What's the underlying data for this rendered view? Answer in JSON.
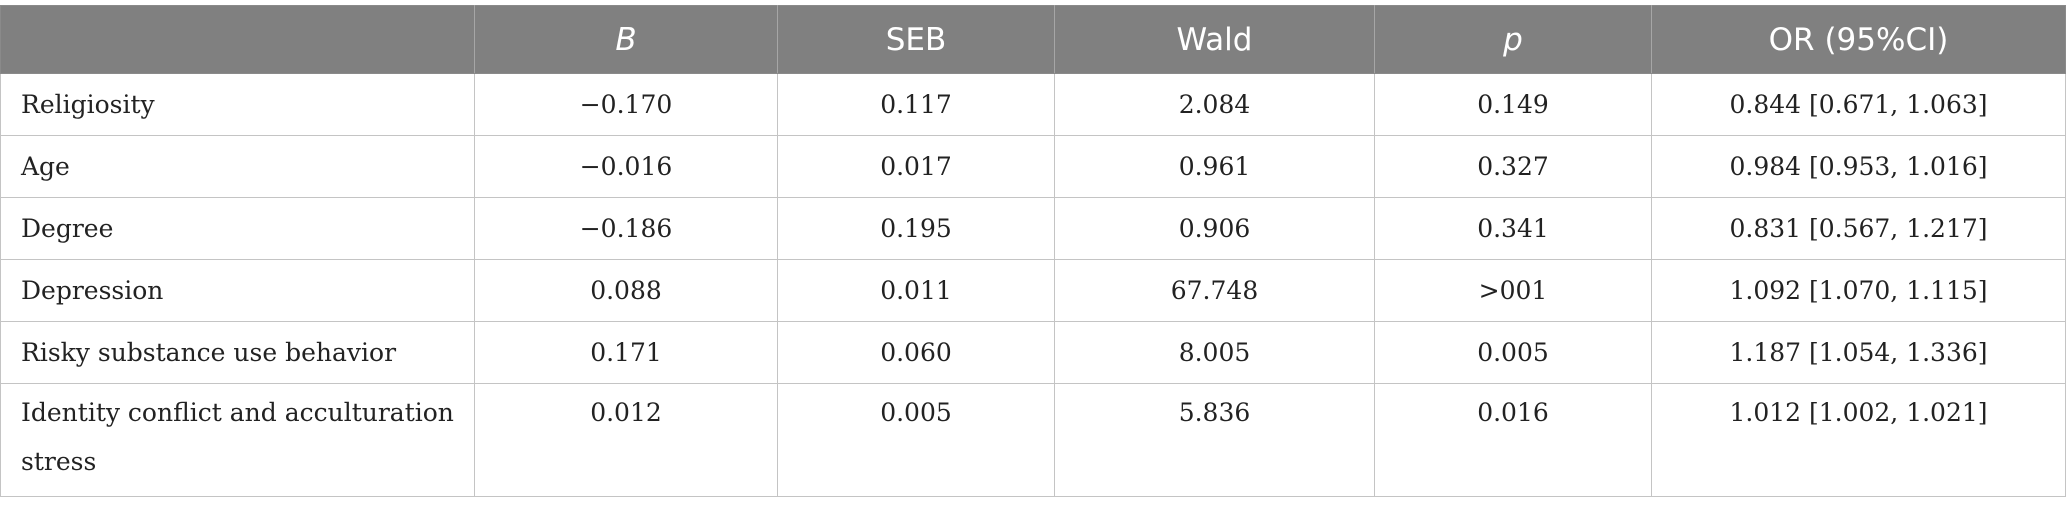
{
  "table": {
    "headers": [
      "",
      "B",
      "SEB",
      "Wald",
      "p",
      "OR (95%CI)"
    ],
    "rows": [
      {
        "label": "Religiosity",
        "B": "−0.170",
        "SEB": "0.117",
        "Wald": "2.084",
        "p": "0.149",
        "OR": "0.844 [0.671, 1.063]"
      },
      {
        "label": "Age",
        "B": "−0.016",
        "SEB": "0.017",
        "Wald": "0.961",
        "p": "0.327",
        "OR": "0.984 [0.953, 1.016]"
      },
      {
        "label": "Degree",
        "B": "−0.186",
        "SEB": "0.195",
        "Wald": "0.906",
        "p": "0.341",
        "OR": "0.831 [0.567, 1.217]"
      },
      {
        "label": "Depression",
        "B": "0.088",
        "SEB": "0.011",
        "Wald": "67.748",
        "p": ">001",
        "OR": "1.092 [1.070, 1.115]"
      },
      {
        "label": "Risky substance use behavior",
        "B": "0.171",
        "SEB": "0.060",
        "Wald": "8.005",
        "p": "0.005",
        "OR": "1.187 [1.054, 1.336]"
      },
      {
        "label": "Identity conflict and acculturation stress",
        "B": "0.012",
        "SEB": "0.005",
        "Wald": "5.836",
        "p": "0.016",
        "OR": "1.012 [1.002, 1.021]"
      }
    ]
  }
}
